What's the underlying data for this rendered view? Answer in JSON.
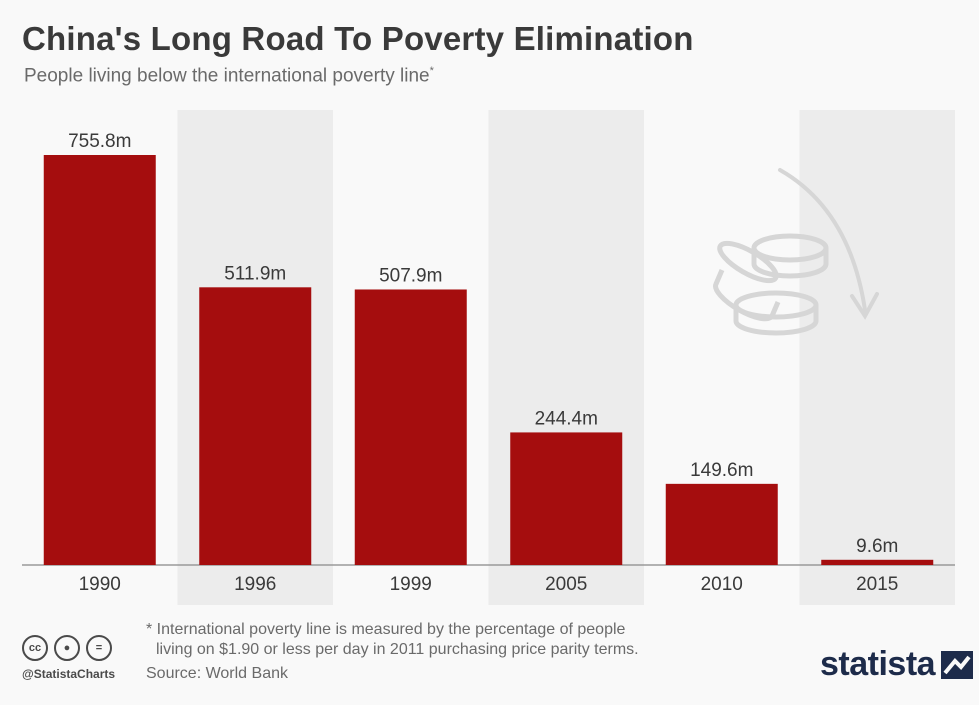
{
  "title": "China's Long Road To Poverty Elimination",
  "subtitle": "People living below the international poverty line",
  "subtitle_marker": "*",
  "footnote": {
    "line1": "* International poverty line is measured by the percentage of people",
    "line2": "living on $1.90 or less per day in 2011 purchasing price parity terms."
  },
  "source": "Source: World Bank",
  "handle": "@StatistaCharts",
  "logo": "statista",
  "cc_icons": [
    "cc",
    "by-person",
    "nd-equals"
  ],
  "colors": {
    "bar": "#a50d0e",
    "band": "#ececec",
    "text": "#3a3a3a",
    "muted": "#6a6a6a",
    "logo": "#1d2b4a"
  },
  "icons": [
    "coins-stack-icon",
    "curved-arrow-down-icon"
  ],
  "chart_data": {
    "type": "bar",
    "categories": [
      "1990",
      "1996",
      "1999",
      "2005",
      "2010",
      "2015"
    ],
    "values": [
      755.8,
      511.9,
      507.9,
      244.4,
      149.6,
      9.6
    ],
    "value_labels": [
      "755.8m",
      "511.9m",
      "507.9m",
      "244.4m",
      "149.6m",
      "9.6m"
    ],
    "title": "China's Long Road To Poverty Elimination",
    "subtitle": "People living below the international poverty line",
    "xlabel": "",
    "ylabel": "",
    "ylim": [
      0,
      755.8
    ],
    "grid": false,
    "alternating_bands": [
      false,
      true,
      false,
      true,
      false,
      true
    ]
  }
}
